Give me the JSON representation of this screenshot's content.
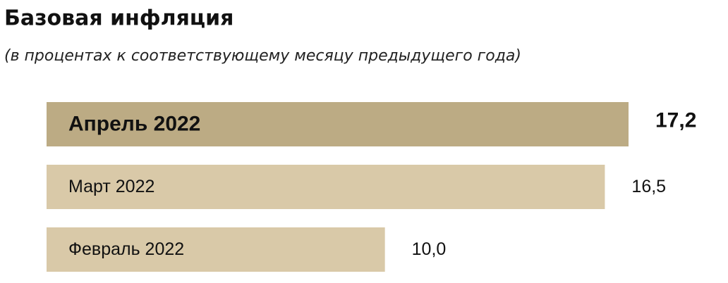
{
  "chart_data": {
    "type": "bar",
    "orientation": "horizontal",
    "title": "Базовая инфляция",
    "subtitle": "(в процентах к соответствующему месяцу предыдущего года)",
    "categories": [
      "Апрель 2022",
      "Март 2022",
      "Февраль 2022"
    ],
    "values": [
      17.2,
      16.5,
      10.0
    ],
    "value_labels": [
      "17,2",
      "16,5",
      "10,0"
    ],
    "colors": [
      "#bcab84",
      "#d9c9a8",
      "#d9c9a8"
    ],
    "grid": false
  }
}
